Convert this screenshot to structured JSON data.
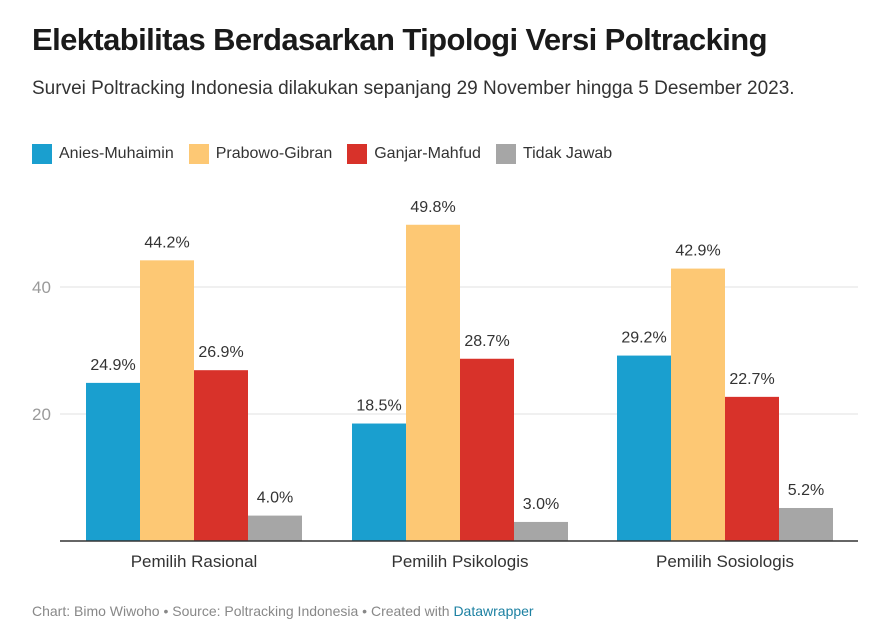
{
  "title": "Elektabilitas Berdasarkan Tipologi Versi Poltracking",
  "subtitle": "Survei Poltracking Indonesia dilakukan sepanjang 29 November hingga 5 Desember 2023.",
  "footer": {
    "credit": "Chart: Bimo Wiwoho • Source: Poltracking Indonesia • Created with ",
    "link": "Datawrapper"
  },
  "chart_data": {
    "type": "bar",
    "categories": [
      "Pemilih Rasional",
      "Pemilih Psikologis",
      "Pemilih Sosiologis"
    ],
    "series": [
      {
        "name": "Anies-Muhaimin",
        "color": "#1a9fcf",
        "values": [
          24.9,
          18.5,
          29.2
        ],
        "labels": [
          "24.9%",
          "18.5%",
          "29.2%"
        ]
      },
      {
        "name": "Prabowo-Gibran",
        "color": "#fdc874",
        "values": [
          44.2,
          49.8,
          42.9
        ],
        "labels": [
          "44.2%",
          "49.8%",
          "42.9%"
        ]
      },
      {
        "name": "Ganjar-Mahfud",
        "color": "#d8322a",
        "values": [
          26.9,
          28.7,
          22.7
        ],
        "labels": [
          "26.9%",
          "28.7%",
          "22.7%"
        ]
      },
      {
        "name": "Tidak Jawab",
        "color": "#a6a6a6",
        "values": [
          4.0,
          3.0,
          5.2
        ],
        "labels": [
          "4.0%",
          "3.0%",
          "5.2%"
        ]
      }
    ],
    "yticks": [
      "20",
      "40"
    ],
    "ylim": [
      0,
      50
    ],
    "grid": true,
    "legend": "top-left"
  }
}
